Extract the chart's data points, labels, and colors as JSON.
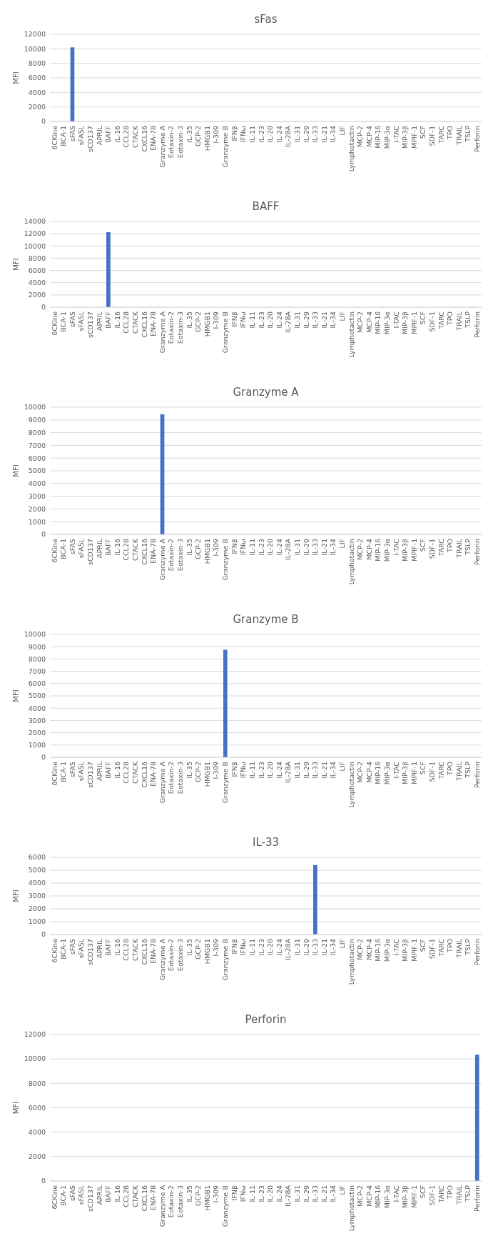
{
  "chart_data": [
    {
      "type": "bar",
      "title": "sFas",
      "ylabel": "MFI",
      "categories": [
        "6CKine",
        "BCA-1",
        "sFAS",
        "sFASL",
        "sCD137",
        "APRIL",
        "BAFF",
        "IL-16",
        "CCL28",
        "CTACK",
        "CXCL16",
        "ENA-78",
        "Granzyme A",
        "Eotaxin-2",
        "Eotaxin-3",
        "IL-35",
        "GCP-2",
        "HMGB1",
        "I-309",
        "Granzyme B",
        "IFNβ",
        "IFNω",
        "IL-11",
        "IL-23",
        "IL-20",
        "IL-24",
        "IL-28A",
        "IL-31",
        "IL-29",
        "IL-33",
        "IL-21",
        "IL-34",
        "LIF",
        "Lymphotactin",
        "MCP-2",
        "MCP-4",
        "MIP-1δ",
        "MIP-3α",
        "I-TAC",
        "MIP-3β",
        "MPIF-1",
        "SCF",
        "SDF-1",
        "TARC",
        "TPO",
        "TRAIL",
        "TSLP",
        "Perforin"
      ],
      "values": [
        0,
        0,
        10200,
        0,
        0,
        0,
        0,
        0,
        0,
        0,
        0,
        0,
        0,
        0,
        0,
        0,
        0,
        0,
        0,
        0,
        0,
        0,
        0,
        0,
        0,
        0,
        0,
        0,
        0,
        0,
        0,
        0,
        0,
        0,
        0,
        0,
        0,
        0,
        0,
        0,
        0,
        0,
        0,
        0,
        0,
        0,
        0,
        0
      ],
      "color": "#4472c4",
      "ylim": [
        0,
        12000
      ],
      "yticks": [
        0,
        2000,
        4000,
        6000,
        8000,
        10000,
        12000
      ],
      "grid": "y"
    },
    {
      "type": "bar",
      "title": "BAFF",
      "ylabel": "MFI",
      "categories": [
        "6CKine",
        "BCA-1",
        "sFAS",
        "sFASL",
        "sCD137",
        "APRIL",
        "BAFF",
        "IL-16",
        "CCL28",
        "CTACK",
        "CXCL16",
        "ENA-78",
        "Granzyme A",
        "Eotaxin-2",
        "Eotaxin-3",
        "IL-35",
        "GCP-2",
        "HMGB1",
        "I-309",
        "Granzyme B",
        "IFNβ",
        "IFNω",
        "IL-11",
        "IL-23",
        "IL-20",
        "IL-24",
        "IL-28A",
        "IL-31",
        "IL-29",
        "IL-33",
        "IL-21",
        "IL-34",
        "LIF",
        "Lymphotactin",
        "MCP-2",
        "MCP-4",
        "MIP-1δ",
        "MIP-3α",
        "I-TAC",
        "MIP-3β",
        "MPIF-1",
        "SCF",
        "SDF-1",
        "TARC",
        "TPO",
        "TRAIL",
        "TSLP",
        "Perforin"
      ],
      "values": [
        0,
        0,
        0,
        0,
        0,
        0,
        12250,
        0,
        0,
        0,
        0,
        0,
        0,
        0,
        0,
        0,
        0,
        0,
        0,
        0,
        0,
        0,
        0,
        0,
        0,
        0,
        0,
        0,
        0,
        0,
        0,
        0,
        0,
        0,
        0,
        0,
        0,
        0,
        0,
        0,
        0,
        0,
        0,
        0,
        0,
        0,
        0,
        0
      ],
      "color": "#4472c4",
      "ylim": [
        0,
        14000
      ],
      "yticks": [
        0,
        2000,
        4000,
        6000,
        8000,
        10000,
        12000,
        14000
      ],
      "grid": "y"
    },
    {
      "type": "bar",
      "title": "Granzyme A",
      "ylabel": "MFI",
      "categories": [
        "6CKine",
        "BCA-1",
        "sFAS",
        "sFASL",
        "sCD137",
        "APRIL",
        "BAFF",
        "IL-16",
        "CCL28",
        "CTACK",
        "CXCL16",
        "ENA-78",
        "Granzyme A",
        "Eotaxin-2",
        "Eotaxin-3",
        "IL-35",
        "GCP-2",
        "HMGB1",
        "I-309",
        "Granzyme B",
        "IFNβ",
        "IFNω",
        "IL-11",
        "IL-23",
        "IL-20",
        "IL-24",
        "IL-28A",
        "IL-31",
        "IL-29",
        "IL-33",
        "IL-21",
        "IL-34",
        "LIF",
        "Lymphotactin",
        "MCP-2",
        "MCP-4",
        "MIP-1δ",
        "MIP-3α",
        "I-TAC",
        "MIP-3β",
        "MPIF-1",
        "SCF",
        "SDF-1",
        "TARC",
        "TPO",
        "TRAIL",
        "TSLP",
        "Perforin"
      ],
      "values": [
        0,
        0,
        0,
        0,
        0,
        0,
        0,
        0,
        0,
        0,
        0,
        0,
        9450,
        0,
        0,
        0,
        0,
        0,
        0,
        0,
        0,
        0,
        0,
        0,
        0,
        0,
        0,
        0,
        0,
        0,
        0,
        0,
        0,
        0,
        0,
        0,
        0,
        0,
        0,
        0,
        0,
        0,
        0,
        0,
        0,
        0,
        0,
        0
      ],
      "color": "#4472c4",
      "ylim": [
        0,
        10000
      ],
      "yticks": [
        0,
        1000,
        2000,
        3000,
        4000,
        5000,
        6000,
        7000,
        8000,
        9000,
        10000
      ],
      "grid": "y"
    },
    {
      "type": "bar",
      "title": "Granzyme B",
      "ylabel": "MFI",
      "categories": [
        "6CKine",
        "BCA-1",
        "sFAS",
        "sFASL",
        "sCD137",
        "APRIL",
        "BAFF",
        "IL-16",
        "CCL28",
        "CTACK",
        "CXCL16",
        "ENA-78",
        "Granzyme A",
        "Eotaxin-2",
        "Eotaxin-3",
        "IL-35",
        "GCP-2",
        "HMGB1",
        "I-309",
        "Granzyme B",
        "IFNβ",
        "IFNω",
        "IL-11",
        "IL-23",
        "IL-20",
        "IL-24",
        "IL-28A",
        "IL-31",
        "IL-29",
        "IL-33",
        "IL-21",
        "IL-34",
        "LIF",
        "Lymphotactin",
        "MCP-2",
        "MCP-4",
        "MIP-1δ",
        "MIP-3α",
        "I-TAC",
        "MIP-3β",
        "MPIF-1",
        "SCF",
        "SDF-1",
        "TARC",
        "TPO",
        "TRAIL",
        "TSLP",
        "Perforin"
      ],
      "values": [
        0,
        0,
        0,
        0,
        0,
        0,
        0,
        0,
        0,
        0,
        0,
        0,
        0,
        0,
        0,
        0,
        0,
        0,
        0,
        8750,
        0,
        0,
        0,
        0,
        0,
        0,
        0,
        0,
        0,
        0,
        0,
        0,
        0,
        0,
        0,
        0,
        0,
        0,
        0,
        0,
        0,
        0,
        0,
        0,
        0,
        0,
        0,
        0
      ],
      "color": "#4472c4",
      "ylim": [
        0,
        10000
      ],
      "yticks": [
        0,
        1000,
        2000,
        3000,
        4000,
        5000,
        6000,
        7000,
        8000,
        9000,
        10000
      ],
      "grid": "y"
    },
    {
      "type": "bar",
      "title": "IL-33",
      "ylabel": "MFI",
      "categories": [
        "6CKine",
        "BCA-1",
        "sFAS",
        "sFASL",
        "sCD137",
        "APRIL",
        "BAFF",
        "IL-16",
        "CCL28",
        "CTACK",
        "CXCL16",
        "ENA-78",
        "Granzyme A",
        "Eotaxin-2",
        "Eotaxin-3",
        "IL-35",
        "GCP-2",
        "HMGB1",
        "I-309",
        "Granzyme B",
        "IFNβ",
        "IFNω",
        "IL-11",
        "IL-23",
        "IL-20",
        "IL-24",
        "IL-28A",
        "IL-31",
        "IL-29",
        "IL-33",
        "IL-21",
        "IL-34",
        "LIF",
        "Lymphotactin",
        "MCP-2",
        "MCP-4",
        "MIP-1δ",
        "MIP-3α",
        "I-TAC",
        "MIP-3β",
        "MPIF-1",
        "SCF",
        "SDF-1",
        "TARC",
        "TPO",
        "TRAIL",
        "TSLP",
        "Perforin"
      ],
      "values": [
        0,
        0,
        0,
        0,
        0,
        0,
        0,
        0,
        0,
        0,
        0,
        0,
        0,
        0,
        0,
        0,
        0,
        0,
        0,
        0,
        0,
        0,
        0,
        0,
        0,
        0,
        0,
        0,
        0,
        5400,
        0,
        0,
        0,
        0,
        0,
        0,
        0,
        0,
        0,
        0,
        0,
        0,
        0,
        0,
        0,
        0,
        0,
        0
      ],
      "color": "#4472c4",
      "ylim": [
        0,
        6000
      ],
      "yticks": [
        0,
        1000,
        2000,
        3000,
        4000,
        5000,
        6000
      ],
      "grid": "y"
    },
    {
      "type": "bar",
      "title": "Perforin",
      "ylabel": "MFI",
      "categories": [
        "6CKine",
        "BCA-1",
        "sFAS",
        "sFASL",
        "sCD137",
        "APRIL",
        "BAFF",
        "IL-16",
        "CCL28",
        "CTACK",
        "CXCL16",
        "ENA-78",
        "Granzyme A",
        "Eotaxin-2",
        "Eotaxin-3",
        "IL-35",
        "GCP-2",
        "HMGB1",
        "I-309",
        "Granzyme B",
        "IFNβ",
        "IFNω",
        "IL-11",
        "IL-23",
        "IL-20",
        "IL-24",
        "IL-28A",
        "IL-31",
        "IL-29",
        "IL-33",
        "IL-21",
        "IL-34",
        "LIF",
        "Lymphotactin",
        "MCP-2",
        "MCP-4",
        "MIP-1δ",
        "MIP-3α",
        "I-TAC",
        "MIP-3β",
        "MPIF-1",
        "SCF",
        "SDF-1",
        "TARC",
        "TPO",
        "TRAIL",
        "TSLP",
        "Perforin"
      ],
      "values": [
        0,
        0,
        0,
        0,
        0,
        0,
        0,
        0,
        0,
        0,
        0,
        0,
        0,
        0,
        0,
        0,
        0,
        0,
        0,
        0,
        0,
        0,
        0,
        0,
        0,
        0,
        0,
        0,
        0,
        0,
        0,
        0,
        0,
        0,
        0,
        0,
        0,
        0,
        0,
        0,
        0,
        0,
        0,
        0,
        0,
        0,
        0,
        10350
      ],
      "color": "#4472c4",
      "ylim": [
        0,
        12000
      ],
      "yticks": [
        0,
        2000,
        4000,
        6000,
        8000,
        10000,
        12000
      ],
      "grid": "y"
    }
  ]
}
